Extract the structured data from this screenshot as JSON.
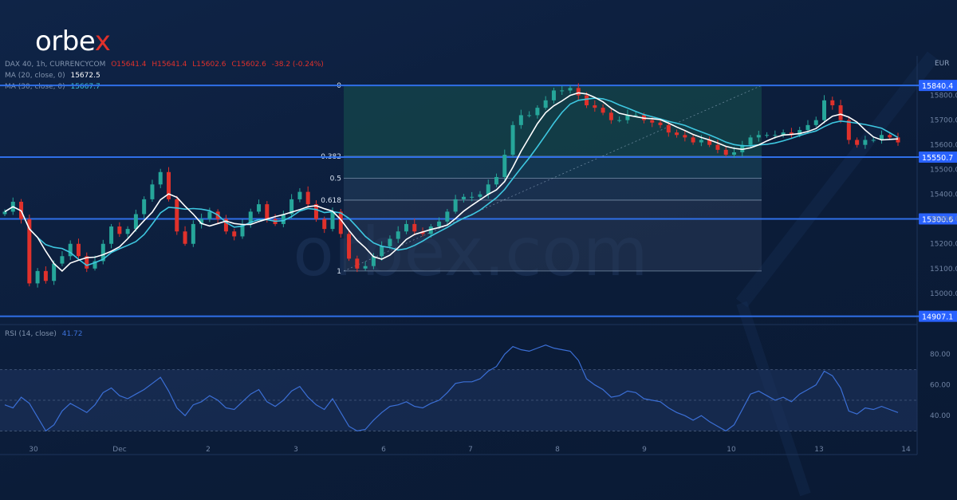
{
  "brand": {
    "name_main": "orbe",
    "name_accent": "x",
    "watermark": "orbex.com"
  },
  "colors": {
    "background": "#0d1f3c",
    "up": "#26a69a",
    "down": "#e0312b",
    "level_line": "#2f6fe8",
    "ma20": "#ffffff",
    "ma30": "#3ec7e0",
    "rsi": "#3b6fd6"
  },
  "chart_data": [
    {
      "type": "candlestick",
      "title": "DAX 40, 1h, CURRENCYCOM",
      "ohlc_text": {
        "open": "O15641.4",
        "high": "H15641.4",
        "low": "L15602.6",
        "close": "C15602.6",
        "change": "-38.2 (-0.24%)"
      },
      "currency": "EUR",
      "x_ticks": [
        "30",
        "Dec",
        "2",
        "3",
        "6",
        "7",
        "8",
        "9",
        "10",
        "13",
        "14"
      ],
      "y_ticks": [
        "15800.0",
        "15700.0",
        "15600.0",
        "15500.0",
        "15400.0",
        "15300.0",
        "15200.0",
        "15100.0",
        "15000.0"
      ],
      "ylim": [
        14880,
        15960
      ],
      "horizontal_levels": [
        {
          "label": "15840.4",
          "value": 15840.4
        },
        {
          "label": "15550.7",
          "value": 15550.7
        },
        {
          "label": "15300.6",
          "value": 15300.6
        },
        {
          "label": "14907.1",
          "value": 14907.1
        }
      ],
      "fibonacci": {
        "high": 15840.4,
        "low": 15090,
        "levels": [
          {
            "label": "0",
            "ratio": 0
          },
          {
            "label": "0.382",
            "ratio": 0.382
          },
          {
            "label": "0.5",
            "ratio": 0.5
          },
          {
            "label": "0.618",
            "ratio": 0.618
          },
          {
            "label": "1",
            "ratio": 1
          }
        ]
      },
      "indicators": [
        {
          "name": "MA (20, close, 0)",
          "last": "15672.5"
        },
        {
          "name": "MA (30, close, 0)",
          "last": "15667.7"
        }
      ],
      "close_path": [
        15330,
        15370,
        15300,
        15040,
        15090,
        15050,
        15120,
        15150,
        15200,
        15150,
        15100,
        15130,
        15200,
        15270,
        15240,
        15260,
        15320,
        15380,
        15440,
        15490,
        15380,
        15250,
        15200,
        15280,
        15300,
        15330,
        15300,
        15250,
        15230,
        15280,
        15330,
        15360,
        15300,
        15280,
        15320,
        15380,
        15410,
        15360,
        15300,
        15260,
        15330,
        15240,
        15140,
        15100,
        15110,
        15150,
        15190,
        15220,
        15250,
        15280,
        15250,
        15240,
        15270,
        15290,
        15330,
        15380,
        15390,
        15390,
        15400,
        15440,
        15470,
        15560,
        15680,
        15720,
        15720,
        15750,
        15780,
        15820,
        15820,
        15830,
        15800,
        15760,
        15750,
        15730,
        15700,
        15700,
        15720,
        15720,
        15700,
        15690,
        15680,
        15650,
        15640,
        15630,
        15610,
        15620,
        15600,
        15580,
        15560,
        15570,
        15600,
        15630,
        15640,
        15640,
        15640,
        15650,
        15640,
        15660,
        15680,
        15700,
        15780,
        15760,
        15700,
        15620,
        15600,
        15620,
        15620,
        15640,
        15630,
        15610
      ]
    },
    {
      "type": "line",
      "title": "RSI (14, close)",
      "last": "41.72",
      "y_ticks": [
        "80.00",
        "60.00",
        "40.00"
      ],
      "ylim": [
        25,
        90
      ],
      "band": [
        30,
        70
      ],
      "midline": 50,
      "values": [
        47,
        45,
        52,
        48,
        39,
        30,
        34,
        43,
        48,
        45,
        42,
        47,
        55,
        58,
        53,
        51,
        54,
        57,
        61,
        65,
        56,
        45,
        40,
        47,
        49,
        53,
        50,
        45,
        44,
        49,
        54,
        57,
        49,
        46,
        50,
        56,
        59,
        52,
        47,
        44,
        51,
        42,
        33,
        30,
        31,
        37,
        42,
        46,
        47,
        49,
        46,
        45,
        48,
        50,
        55,
        61,
        62,
        62,
        64,
        69,
        72,
        80,
        85,
        83,
        82,
        84,
        86,
        84,
        83,
        82,
        76,
        64,
        60,
        57,
        52,
        53,
        56,
        55,
        51,
        50,
        49,
        45,
        42,
        40,
        37,
        40,
        36,
        33,
        30,
        34,
        44,
        54,
        56,
        53,
        50,
        52,
        49,
        54,
        57,
        60,
        69,
        66,
        58,
        43,
        41,
        45,
        44,
        46,
        44,
        42
      ]
    }
  ]
}
